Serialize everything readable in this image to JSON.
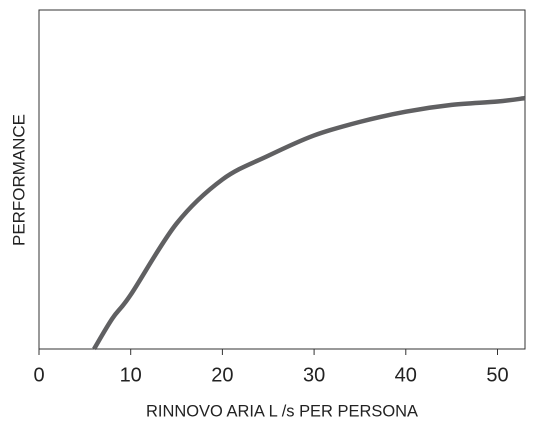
{
  "chart_data": {
    "type": "line",
    "x_label": "RINNOVO ARIA L /s PER PERSONA",
    "y_label": "PERFORMANCE",
    "x": [
      6,
      8,
      10,
      15,
      20,
      25,
      30,
      35,
      40,
      45,
      50,
      53
    ],
    "series": [
      {
        "color": "#606062",
        "values": [
          0,
          9,
          16,
          37,
          50,
          57,
          63,
          67,
          70,
          72,
          73,
          74
        ]
      }
    ],
    "xlim": [
      0,
      53
    ],
    "ylim": [
      0,
      100
    ],
    "xticks": [
      0,
      10,
      20,
      30,
      40,
      50
    ]
  }
}
